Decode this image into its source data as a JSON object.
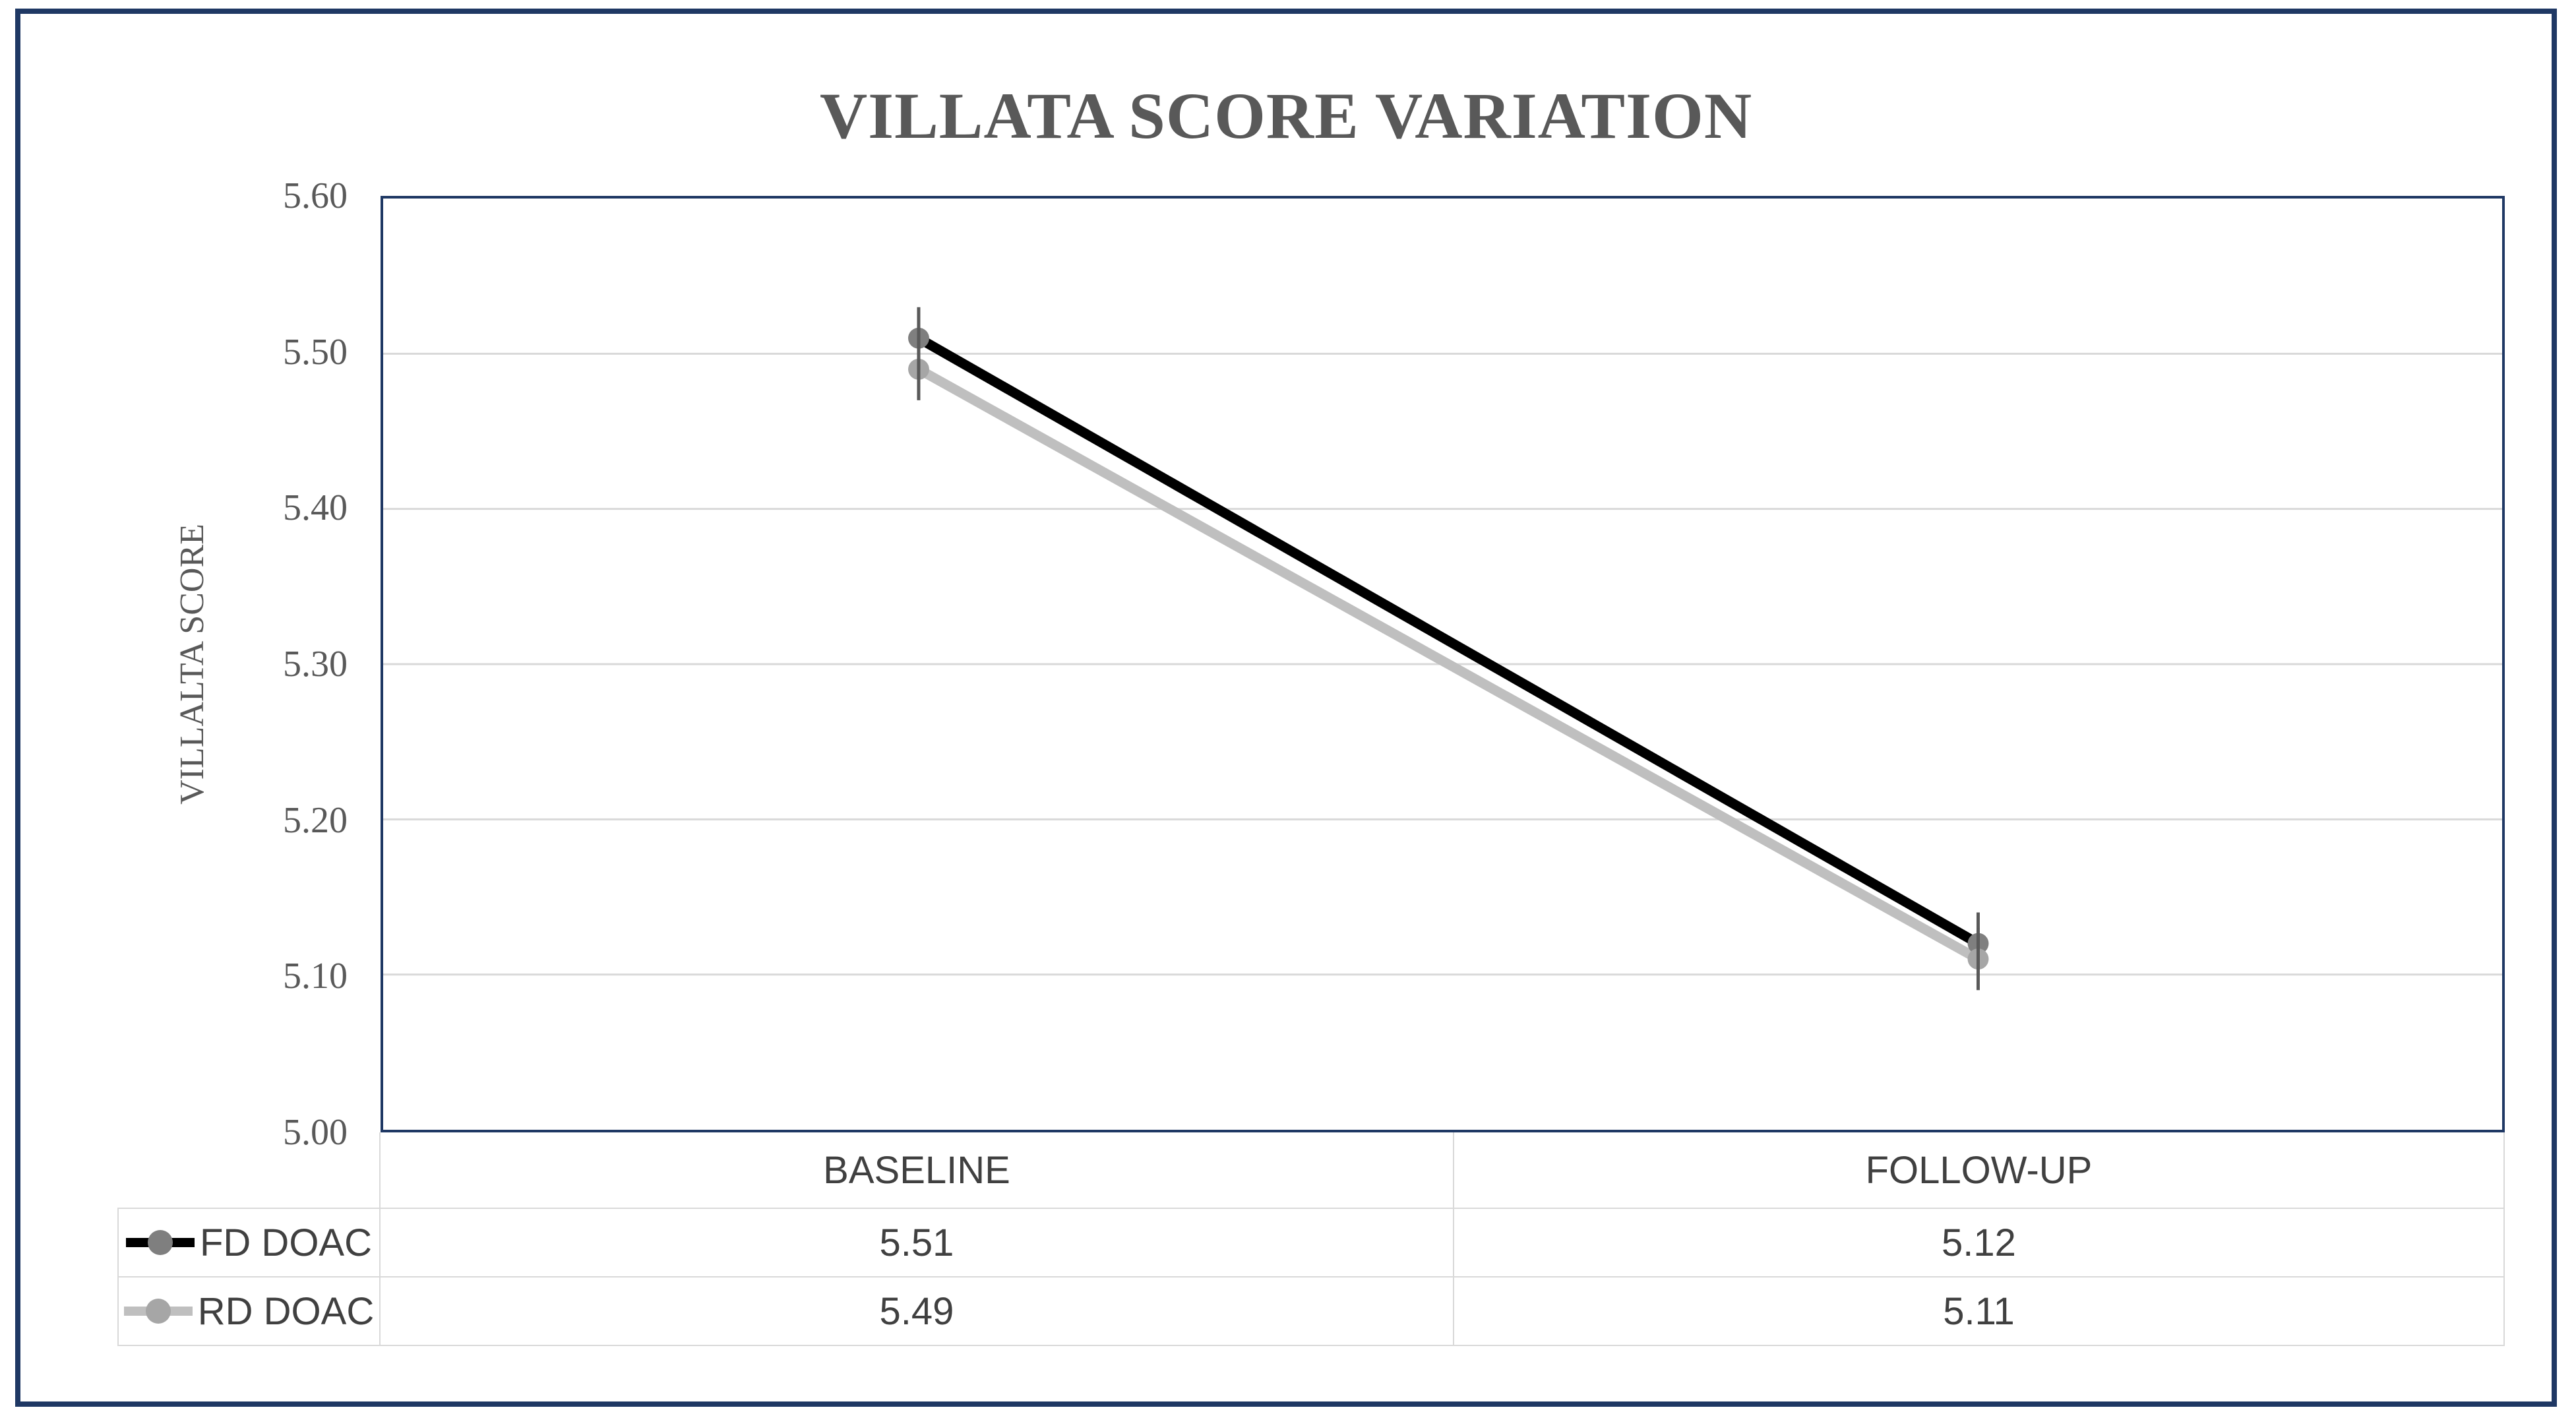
{
  "title": "VILLATA SCORE VARIATION",
  "chart_data": {
    "type": "line",
    "title": "VILLATA SCORE VARIATION",
    "xlabel": "",
    "ylabel": "VILLALTA SCORE",
    "categories": [
      "BASELINE",
      "FOLLOW-UP"
    ],
    "series": [
      {
        "name": "FD DOAC",
        "values": [
          5.51,
          5.12
        ],
        "line_color": "#000000",
        "marker_color": "#7F7F7F"
      },
      {
        "name": "RD DOAC",
        "values": [
          5.49,
          5.11
        ],
        "line_color": "#BFBFBF",
        "marker_color": "#A6A6A6"
      }
    ],
    "ylim": [
      5.0,
      5.6
    ],
    "ytick_labels": [
      "5.00",
      "5.10",
      "5.20",
      "5.30",
      "5.40",
      "5.50",
      "5.60"
    ],
    "grid": true,
    "error_bar_half_height": 0.02,
    "legend_position": "table-left"
  },
  "table": {
    "column_headers": [
      "BASELINE",
      "FOLLOW-UP"
    ],
    "rows": [
      {
        "label": "FD DOAC",
        "values": [
          "5.51",
          "5.12"
        ]
      },
      {
        "label": "RD DOAC",
        "values": [
          "5.49",
          "5.11"
        ]
      }
    ]
  },
  "colors": {
    "frame_border": "#1F3864",
    "plot_border": "#1F3864",
    "gridline": "#D9D9D9",
    "table_border": "#D9D9D9",
    "title_text": "#595959",
    "tick_text": "#595959",
    "table_text": "#404040",
    "error_bar": "#595959",
    "background": "#FFFFFF"
  }
}
